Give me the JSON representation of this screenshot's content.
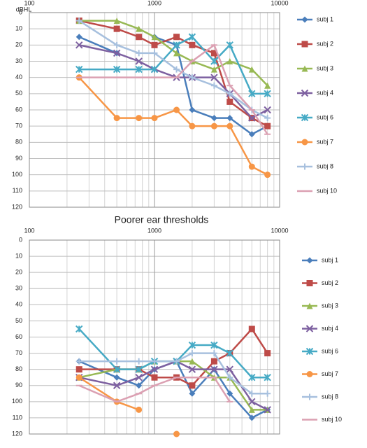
{
  "chart_data": [
    {
      "type": "line",
      "y_label": "dBHL",
      "xlog": true,
      "yinvert": true,
      "grid": true,
      "legend": "right",
      "x": [
        250,
        500,
        750,
        1000,
        1500,
        2000,
        3000,
        4000,
        6000,
        8000
      ],
      "xlim": [
        100,
        10000
      ],
      "xticks": [
        100,
        1000,
        10000
      ],
      "ylim": [
        0,
        120
      ],
      "yticks": [
        0,
        10,
        20,
        30,
        40,
        50,
        60,
        70,
        80,
        90,
        100,
        110,
        120
      ],
      "series": [
        {
          "name": "subj 1",
          "color": "#4a7ebb",
          "marker": "diamond",
          "values": [
            15,
            25,
            null,
            15,
            20,
            60,
            65,
            65,
            75,
            70
          ]
        },
        {
          "name": "subj 2",
          "color": "#be4b48",
          "marker": "square",
          "values": [
            5,
            10,
            15,
            20,
            15,
            20,
            25,
            55,
            65,
            70
          ]
        },
        {
          "name": "subj 3",
          "color": "#98b954",
          "marker": "triangle",
          "values": [
            5,
            5,
            10,
            15,
            25,
            30,
            35,
            30,
            35,
            45
          ]
        },
        {
          "name": "subj 4",
          "color": "#7d60a0",
          "marker": "x",
          "values": [
            20,
            25,
            30,
            35,
            40,
            40,
            40,
            50,
            65,
            60
          ]
        },
        {
          "name": "subj 6",
          "color": "#46aac5",
          "marker": "star",
          "values": [
            35,
            35,
            35,
            35,
            20,
            15,
            30,
            20,
            50,
            50
          ]
        },
        {
          "name": "subj 7",
          "color": "#f79646",
          "marker": "circle",
          "values": [
            40,
            65,
            65,
            65,
            60,
            70,
            70,
            70,
            95,
            100
          ]
        },
        {
          "name": "subj 8",
          "color": "#a7c0de",
          "marker": "plus",
          "values": [
            5,
            20,
            25,
            25,
            35,
            40,
            45,
            50,
            60,
            65
          ]
        },
        {
          "name": "subj 10",
          "color": "#dba0b2",
          "marker": "dash",
          "values": [
            40,
            40,
            40,
            40,
            40,
            30,
            20,
            45,
            60,
            75
          ]
        }
      ]
    },
    {
      "type": "line",
      "title": "Poorer ear thresholds",
      "xlog": true,
      "yinvert": true,
      "grid": true,
      "legend": "right",
      "x": [
        250,
        500,
        750,
        1000,
        1500,
        2000,
        3000,
        4000,
        6000,
        8000
      ],
      "xlim": [
        100,
        10000
      ],
      "xticks": [
        100,
        1000,
        10000
      ],
      "ylim": [
        0,
        120
      ],
      "yticks": [
        0,
        10,
        20,
        30,
        40,
        50,
        60,
        70,
        80,
        90,
        100,
        110,
        120
      ],
      "series": [
        {
          "name": "subj 1",
          "color": "#4a7ebb",
          "marker": "diamond",
          "values": [
            75,
            85,
            90,
            80,
            75,
            95,
            80,
            95,
            110,
            105
          ]
        },
        {
          "name": "subj 2",
          "color": "#be4b48",
          "marker": "square",
          "values": [
            80,
            80,
            80,
            85,
            85,
            90,
            75,
            70,
            55,
            70
          ]
        },
        {
          "name": "subj 3",
          "color": "#98b954",
          "marker": "triangle",
          "values": [
            85,
            80,
            80,
            75,
            75,
            75,
            85,
            85,
            105,
            105
          ]
        },
        {
          "name": "subj 4",
          "color": "#7d60a0",
          "marker": "x",
          "values": [
            85,
            90,
            85,
            80,
            75,
            80,
            80,
            80,
            100,
            105
          ]
        },
        {
          "name": "subj 6",
          "color": "#46aac5",
          "marker": "star",
          "values": [
            55,
            80,
            80,
            75,
            75,
            65,
            65,
            70,
            85,
            85
          ]
        },
        {
          "name": "subj 7",
          "color": "#f79646",
          "marker": "circle",
          "values": [
            85,
            100,
            105,
            null,
            120,
            null,
            null,
            null,
            null,
            null
          ]
        },
        {
          "name": "subj 8",
          "color": "#a7c0de",
          "marker": "plus",
          "values": [
            75,
            75,
            75,
            75,
            75,
            70,
            70,
            85,
            95,
            95
          ]
        },
        {
          "name": "subj 10",
          "color": "#dba0b2",
          "marker": "dash",
          "values": [
            90,
            100,
            95,
            90,
            85,
            85,
            85,
            100,
            null,
            null
          ]
        }
      ]
    }
  ]
}
